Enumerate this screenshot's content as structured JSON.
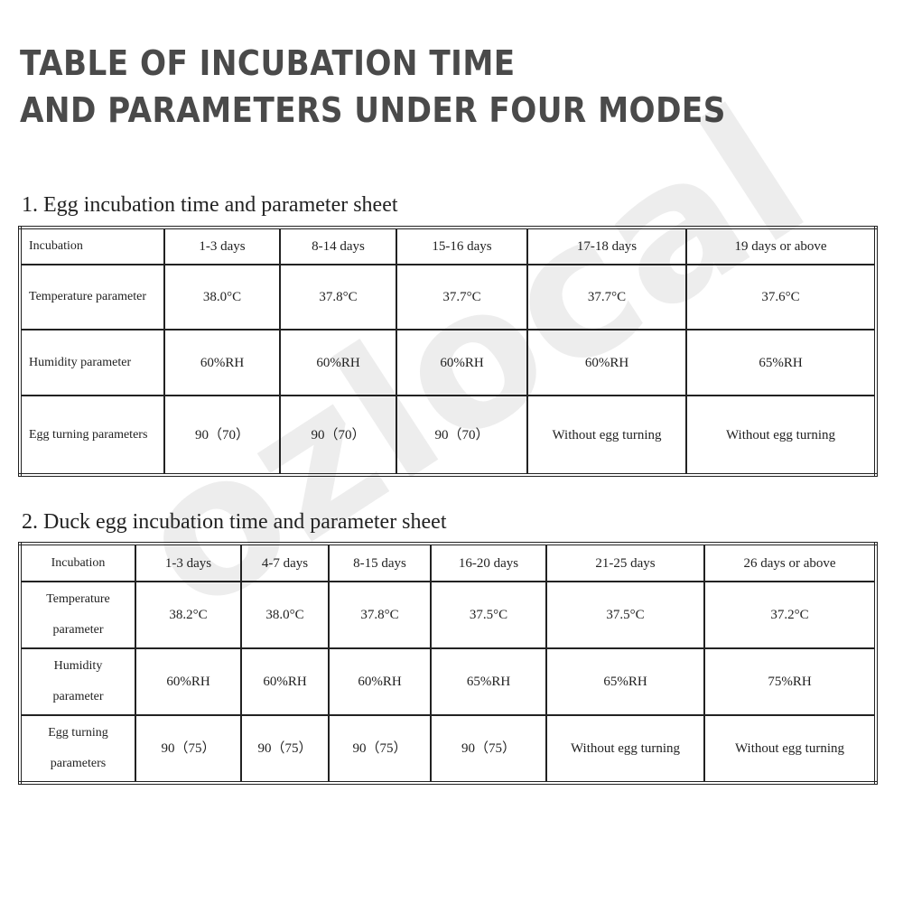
{
  "title": {
    "lines": [
      "TABLE OF INCUBATION TIME",
      "AND PARAMETERS UNDER FOUR MODES"
    ]
  },
  "watermark": "ozlocal",
  "sections": [
    {
      "heading": "1. Egg incubation time and parameter sheet",
      "header": [
        "Incubation",
        "1-3 days",
        "8-14 days",
        "15-16 days",
        "17-18 days",
        "19 days or above"
      ],
      "rows": [
        [
          "Temperature parameter",
          "38.0°C",
          "37.8°C",
          "37.7°C",
          "37.7°C",
          "37.6°C"
        ],
        [
          "Humidity parameter",
          "60%RH",
          "60%RH",
          "60%RH",
          "60%RH",
          "65%RH"
        ],
        [
          "Egg turning parameters",
          "90（70）",
          "90（70）",
          "90（70）",
          "Without egg turning",
          "Without egg turning"
        ]
      ]
    },
    {
      "heading": "2. Duck egg incubation time and parameter sheet",
      "header": [
        "Incubation",
        "1-3 days",
        "4-7 days",
        "8-15 days",
        "16-20 days",
        "21-25 days",
        "26 days or above"
      ],
      "rows": [
        [
          "Temperature parameter",
          "38.2°C",
          "38.0°C",
          "37.8°C",
          "37.5°C",
          "37.5°C",
          "37.2°C"
        ],
        [
          "Humidity parameter",
          "60%RH",
          "60%RH",
          "60%RH",
          "65%RH",
          "65%RH",
          "75%RH"
        ],
        [
          "Egg turning parameters",
          "90（75）",
          "90（75）",
          "90（75）",
          "90（75）",
          "Without egg turning",
          "Without egg turning"
        ]
      ]
    }
  ]
}
